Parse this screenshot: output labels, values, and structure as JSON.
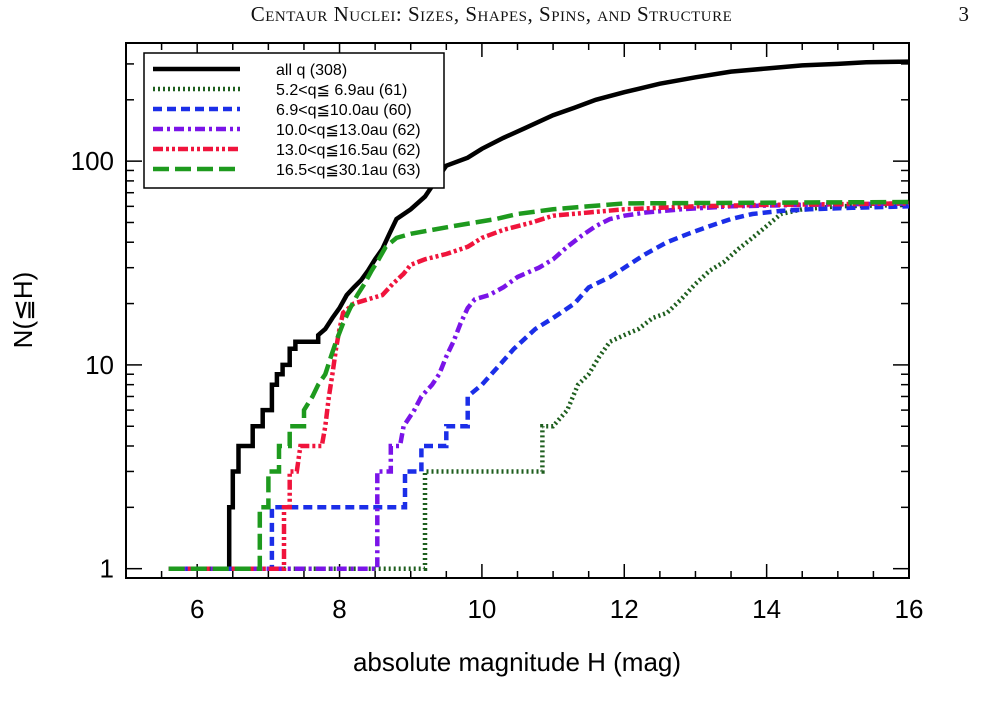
{
  "page": {
    "running_header": "Centaur Nuclei: Sizes, Shapes, Spins, and Structure",
    "page_number": "3"
  },
  "colors": {
    "all_q": "#000000",
    "q1": "#1e5e1e",
    "q2": "#1b2ee8",
    "q3": "#7a14e8",
    "q4": "#f0143c",
    "q5": "#1e9a1e"
  },
  "chart_data": {
    "type": "line",
    "step": true,
    "title": "",
    "xlabel": "absolute magnitude H (mag)",
    "ylabel": "N(≦H)",
    "xlim": [
      5,
      16
    ],
    "ylim": [
      0.9,
      380
    ],
    "yscale": "log",
    "xticks": [
      6,
      8,
      10,
      12,
      14,
      16
    ],
    "xtick_labels": [
      "6",
      "8",
      "10",
      "12",
      "14",
      "16"
    ],
    "yticks": [
      1,
      10,
      100
    ],
    "ytick_labels": [
      "1",
      "10",
      "100"
    ],
    "legend_position": "top-left",
    "series": [
      {
        "name": "all q (308)",
        "color": "#000000",
        "dash": "solid",
        "points": [
          [
            5.6,
            1
          ],
          [
            6.45,
            1
          ],
          [
            6.45,
            2
          ],
          [
            6.5,
            2
          ],
          [
            6.5,
            3
          ],
          [
            6.58,
            3
          ],
          [
            6.58,
            4
          ],
          [
            6.78,
            4
          ],
          [
            6.78,
            5
          ],
          [
            6.92,
            5
          ],
          [
            6.92,
            6
          ],
          [
            7.05,
            6
          ],
          [
            7.05,
            8
          ],
          [
            7.12,
            8
          ],
          [
            7.12,
            9
          ],
          [
            7.2,
            9
          ],
          [
            7.2,
            10
          ],
          [
            7.3,
            10
          ],
          [
            7.3,
            12
          ],
          [
            7.38,
            12
          ],
          [
            7.38,
            13
          ],
          [
            7.7,
            13
          ],
          [
            7.7,
            14
          ],
          [
            7.8,
            15
          ],
          [
            7.9,
            17
          ],
          [
            8.0,
            19
          ],
          [
            8.1,
            22
          ],
          [
            8.2,
            24
          ],
          [
            8.3,
            26
          ],
          [
            8.4,
            29
          ],
          [
            8.5,
            33
          ],
          [
            8.6,
            37
          ],
          [
            8.7,
            44
          ],
          [
            8.8,
            52
          ],
          [
            9.0,
            58
          ],
          [
            9.2,
            67
          ],
          [
            9.35,
            80
          ],
          [
            9.5,
            95
          ],
          [
            9.8,
            104
          ],
          [
            10.0,
            115
          ],
          [
            10.3,
            130
          ],
          [
            10.6,
            145
          ],
          [
            11.0,
            168
          ],
          [
            11.3,
            183
          ],
          [
            11.6,
            200
          ],
          [
            12.0,
            218
          ],
          [
            12.5,
            240
          ],
          [
            13.0,
            258
          ],
          [
            13.5,
            275
          ],
          [
            14.0,
            285
          ],
          [
            14.5,
            295
          ],
          [
            15.0,
            300
          ],
          [
            15.4,
            306
          ],
          [
            16.0,
            308
          ]
        ]
      },
      {
        "name": "5.2<q≦ 6.9au (61)",
        "color": "#1e5e1e",
        "dash": "dotted",
        "points": [
          [
            5.6,
            1
          ],
          [
            9.2,
            1
          ],
          [
            9.2,
            3
          ],
          [
            10.85,
            3
          ],
          [
            10.85,
            5
          ],
          [
            11.0,
            5
          ],
          [
            11.2,
            6
          ],
          [
            11.35,
            8
          ],
          [
            11.5,
            9
          ],
          [
            11.65,
            11
          ],
          [
            11.8,
            13
          ],
          [
            12.0,
            14
          ],
          [
            12.2,
            15
          ],
          [
            12.4,
            17
          ],
          [
            12.6,
            18
          ],
          [
            12.8,
            21
          ],
          [
            13.0,
            25
          ],
          [
            13.2,
            29
          ],
          [
            13.4,
            32
          ],
          [
            13.6,
            37
          ],
          [
            13.8,
            42
          ],
          [
            14.0,
            48
          ],
          [
            14.2,
            55
          ],
          [
            14.5,
            58
          ],
          [
            15.0,
            60
          ],
          [
            16.0,
            61
          ]
        ]
      },
      {
        "name": "6.9<q≦10.0au (60)",
        "color": "#1b2ee8",
        "dash": "dashed",
        "points": [
          [
            5.6,
            1
          ],
          [
            7.05,
            1
          ],
          [
            7.05,
            2
          ],
          [
            8.92,
            2
          ],
          [
            8.92,
            3
          ],
          [
            9.15,
            3
          ],
          [
            9.15,
            4
          ],
          [
            9.5,
            4
          ],
          [
            9.5,
            5
          ],
          [
            9.8,
            5
          ],
          [
            9.8,
            7
          ],
          [
            10.0,
            8
          ],
          [
            10.25,
            10
          ],
          [
            10.45,
            12
          ],
          [
            10.75,
            15
          ],
          [
            11.0,
            17
          ],
          [
            11.3,
            20
          ],
          [
            11.5,
            24
          ],
          [
            11.8,
            27
          ],
          [
            12.0,
            30
          ],
          [
            12.3,
            35
          ],
          [
            12.6,
            40
          ],
          [
            12.9,
            44
          ],
          [
            13.2,
            48
          ],
          [
            13.5,
            52
          ],
          [
            13.8,
            55
          ],
          [
            14.2,
            57
          ],
          [
            14.6,
            58
          ],
          [
            15.2,
            59
          ],
          [
            16.0,
            60
          ]
        ]
      },
      {
        "name": "10.0<q≦13.0au (62)",
        "color": "#7a14e8",
        "dash": "dashdot",
        "points": [
          [
            5.6,
            1
          ],
          [
            8.53,
            1
          ],
          [
            8.53,
            3
          ],
          [
            8.72,
            3
          ],
          [
            8.72,
            4
          ],
          [
            8.85,
            4
          ],
          [
            8.9,
            5
          ],
          [
            9.05,
            6
          ],
          [
            9.15,
            7
          ],
          [
            9.3,
            8
          ],
          [
            9.4,
            9
          ],
          [
            9.5,
            11
          ],
          [
            9.6,
            13
          ],
          [
            9.7,
            16
          ],
          [
            9.8,
            19
          ],
          [
            9.9,
            21
          ],
          [
            10.1,
            22
          ],
          [
            10.3,
            24
          ],
          [
            10.5,
            27
          ],
          [
            10.8,
            30
          ],
          [
            11.0,
            33
          ],
          [
            11.2,
            38
          ],
          [
            11.4,
            43
          ],
          [
            11.6,
            48
          ],
          [
            11.8,
            52
          ],
          [
            12.0,
            54
          ],
          [
            12.3,
            56
          ],
          [
            12.8,
            58
          ],
          [
            13.5,
            60
          ],
          [
            14.5,
            61
          ],
          [
            16.0,
            62
          ]
        ]
      },
      {
        "name": "13.0<q≦16.5au (62)",
        "color": "#f0143c",
        "dash": "dashdotdot",
        "points": [
          [
            5.6,
            1
          ],
          [
            7.22,
            1
          ],
          [
            7.22,
            2
          ],
          [
            7.3,
            2
          ],
          [
            7.3,
            3
          ],
          [
            7.4,
            3
          ],
          [
            7.45,
            4
          ],
          [
            7.75,
            4
          ],
          [
            7.8,
            5
          ],
          [
            7.85,
            7
          ],
          [
            7.9,
            9
          ],
          [
            7.95,
            12
          ],
          [
            8.0,
            15
          ],
          [
            8.05,
            18
          ],
          [
            8.2,
            20
          ],
          [
            8.4,
            21
          ],
          [
            8.6,
            22
          ],
          [
            8.75,
            25
          ],
          [
            8.9,
            28
          ],
          [
            9.0,
            31
          ],
          [
            9.2,
            33
          ],
          [
            9.5,
            35
          ],
          [
            9.8,
            38
          ],
          [
            10.0,
            42
          ],
          [
            10.3,
            46
          ],
          [
            10.7,
            50
          ],
          [
            11.0,
            54
          ],
          [
            11.5,
            56
          ],
          [
            12.0,
            58
          ],
          [
            13.0,
            60
          ],
          [
            14.0,
            61
          ],
          [
            16.0,
            62
          ]
        ]
      },
      {
        "name": "16.5<q≦30.1au (63)",
        "color": "#1e9a1e",
        "dash": "longdash",
        "points": [
          [
            5.6,
            1
          ],
          [
            6.88,
            1
          ],
          [
            6.88,
            2
          ],
          [
            7.0,
            2
          ],
          [
            7.0,
            3
          ],
          [
            7.15,
            3
          ],
          [
            7.15,
            4
          ],
          [
            7.3,
            4
          ],
          [
            7.3,
            5
          ],
          [
            7.5,
            5
          ],
          [
            7.5,
            6
          ],
          [
            7.62,
            7
          ],
          [
            7.7,
            8
          ],
          [
            7.8,
            9
          ],
          [
            7.88,
            11
          ],
          [
            7.95,
            13
          ],
          [
            8.05,
            16
          ],
          [
            8.15,
            19
          ],
          [
            8.25,
            22
          ],
          [
            8.35,
            25
          ],
          [
            8.45,
            29
          ],
          [
            8.55,
            33
          ],
          [
            8.65,
            38
          ],
          [
            8.8,
            42
          ],
          [
            9.0,
            44
          ],
          [
            9.3,
            46
          ],
          [
            9.6,
            48
          ],
          [
            9.9,
            50
          ],
          [
            10.2,
            52
          ],
          [
            10.5,
            55
          ],
          [
            11.0,
            58
          ],
          [
            11.5,
            60
          ],
          [
            12.0,
            62
          ],
          [
            16.0,
            63
          ]
        ]
      }
    ]
  }
}
